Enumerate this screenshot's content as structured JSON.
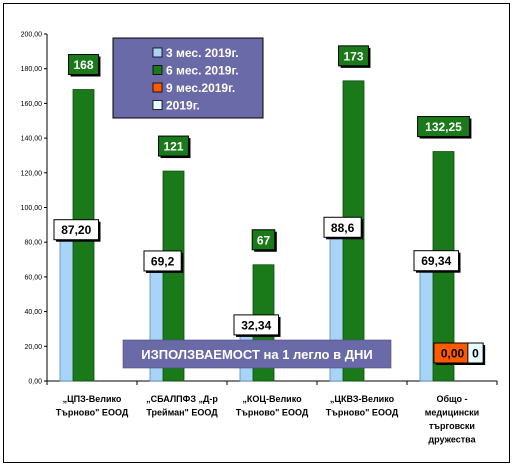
{
  "chart_data": {
    "type": "bar",
    "categories": [
      [
        "„ЦПЗ-Велико",
        "Търново\" ЕООД"
      ],
      [
        "„СБАЛПФЗ „Д-р",
        "Трейман\" ЕООД"
      ],
      [
        "„КОЦ-Велико",
        "Търново\" ЕООД"
      ],
      [
        "„ЦКВЗ-Велико",
        "Търново\" ЕООД"
      ],
      [
        "Общо -",
        "медицински",
        "търговски",
        "дружества"
      ]
    ],
    "series": [
      {
        "name": "3 мес. 2019г.",
        "color": "#a8d4f8",
        "border": "#5a8ab8",
        "values": [
          87.2,
          69.2,
          32.34,
          88.6,
          69.34
        ],
        "labels": [
          "87,20",
          "69,2",
          "32,34",
          "88,6",
          "69,34"
        ],
        "label_style": "light"
      },
      {
        "name": "6 мес. 2019г.",
        "color": "#1a7a1a",
        "border": "#0d4d0d",
        "values": [
          168,
          121,
          67,
          173,
          132.25
        ],
        "labels": [
          "168",
          "121",
          "67",
          "173",
          "132,25"
        ],
        "label_style": "dark"
      },
      {
        "name": "9 мес.2019г.",
        "color": "#ff5a00",
        "border": "#a03000",
        "values": [
          null,
          null,
          null,
          null,
          0
        ],
        "labels": [
          null,
          null,
          null,
          null,
          "0,00"
        ],
        "label_style": "orange"
      },
      {
        "name": "2019г.",
        "color": "#e8fbff",
        "border": "#6aa0c0",
        "values": [
          null,
          null,
          null,
          null,
          0
        ],
        "labels": [
          null,
          null,
          null,
          null,
          "0"
        ],
        "label_style": "pale"
      }
    ],
    "ylim": [
      0,
      200
    ],
    "yticks": [
      "0,00",
      "20,00",
      "40,00",
      "60,00",
      "80,00",
      "100,00",
      "120,00",
      "140,00",
      "160,00",
      "180,00",
      "200,00"
    ],
    "annotation": "ИЗПОЛЗВАЕМОСТ на 1 легло в ДНИ",
    "legend_position": "top-center",
    "grid": false,
    "legend_bg": "#6b6aa8"
  }
}
